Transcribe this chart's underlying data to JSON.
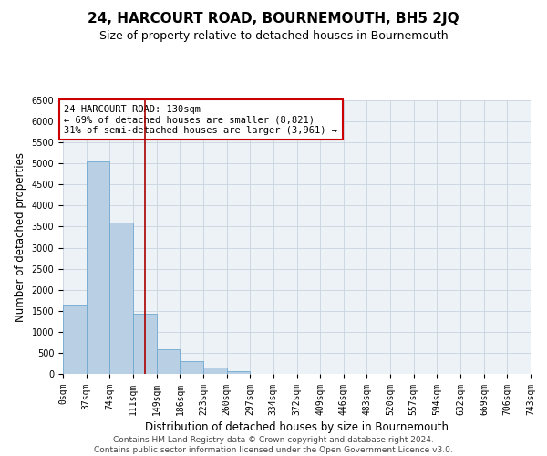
{
  "title": "24, HARCOURT ROAD, BOURNEMOUTH, BH5 2JQ",
  "subtitle": "Size of property relative to detached houses in Bournemouth",
  "xlabel": "Distribution of detached houses by size in Bournemouth",
  "ylabel": "Number of detached properties",
  "footer_lines": [
    "Contains HM Land Registry data © Crown copyright and database right 2024.",
    "Contains public sector information licensed under the Open Government Licence v3.0."
  ],
  "bin_edges": [
    0,
    37,
    74,
    111,
    149,
    186,
    223,
    260,
    297,
    334,
    372,
    409,
    446,
    483,
    520,
    557,
    594,
    632,
    669,
    706,
    743
  ],
  "bin_labels": [
    "0sqm",
    "37sqm",
    "74sqm",
    "111sqm",
    "149sqm",
    "186sqm",
    "223sqm",
    "260sqm",
    "297sqm",
    "334sqm",
    "372sqm",
    "409sqm",
    "446sqm",
    "483sqm",
    "520sqm",
    "557sqm",
    "594sqm",
    "632sqm",
    "669sqm",
    "706sqm",
    "743sqm"
  ],
  "bar_heights": [
    1650,
    5050,
    3600,
    1420,
    590,
    295,
    150,
    70,
    0,
    0,
    0,
    0,
    0,
    0,
    0,
    0,
    0,
    0,
    0,
    0
  ],
  "bar_color": "#b8cfe4",
  "bar_edgecolor": "#6fa8d1",
  "vline_x": 130,
  "vline_color": "#aa0000",
  "annotation_title": "24 HARCOURT ROAD: 130sqm",
  "annotation_line1": "← 69% of detached houses are smaller (8,821)",
  "annotation_line2": "31% of semi-detached houses are larger (3,961) →",
  "annotation_box_color": "#cc0000",
  "ylim": [
    0,
    6500
  ],
  "yticks": [
    0,
    500,
    1000,
    1500,
    2000,
    2500,
    3000,
    3500,
    4000,
    4500,
    5000,
    5500,
    6000,
    6500
  ],
  "grid_color": "#c8d4e0",
  "bg_color": "#edf2f7",
  "title_fontsize": 11,
  "subtitle_fontsize": 9,
  "axis_label_fontsize": 8.5,
  "tick_fontsize": 7,
  "annotation_fontsize": 7.5,
  "footer_fontsize": 6.5
}
